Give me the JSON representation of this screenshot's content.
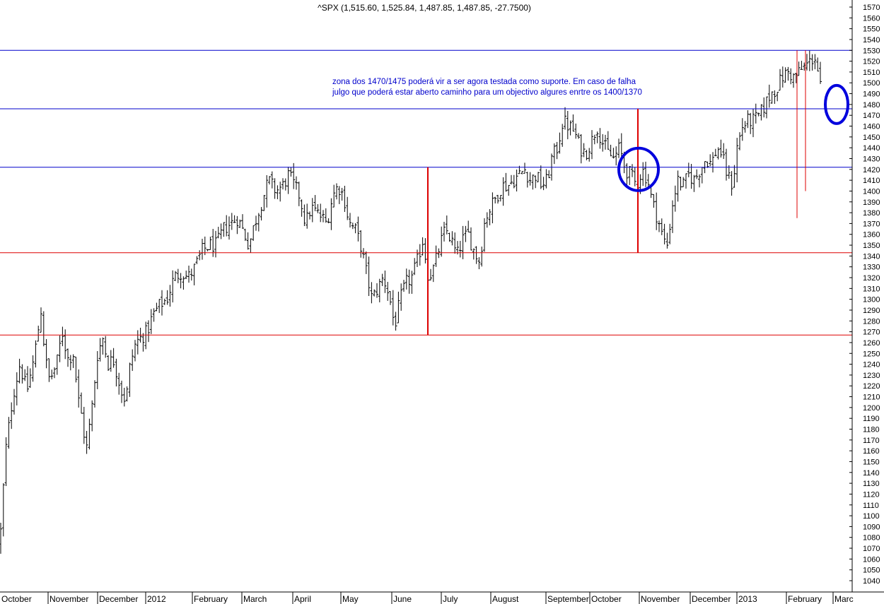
{
  "chart_data": {
    "type": "ohlc",
    "title": "^SPX (1,515.60, 1,525.84, 1,487.85, 1,487.85, -27.7500)",
    "ylim": [
      1032,
      1575
    ],
    "y_tick_min": 1040,
    "y_tick_max": 1570,
    "y_tick_step": 10,
    "grid": false,
    "months": [
      "October",
      "November",
      "December",
      "2012",
      "February",
      "March",
      "April",
      "May",
      "June",
      "July",
      "August",
      "September",
      "October",
      "November",
      "December",
      "2013",
      "February",
      "Marc"
    ],
    "close_path": [
      [
        0,
        1075
      ],
      [
        8,
        1160
      ],
      [
        18,
        1210
      ],
      [
        28,
        1240
      ],
      [
        38,
        1215
      ],
      [
        48,
        1245
      ],
      [
        58,
        1290
      ],
      [
        64,
        1245
      ],
      [
        70,
        1225
      ],
      [
        80,
        1240
      ],
      [
        88,
        1270
      ],
      [
        96,
        1245
      ],
      [
        104,
        1250
      ],
      [
        110,
        1210
      ],
      [
        116,
        1190
      ],
      [
        122,
        1160
      ],
      [
        130,
        1200
      ],
      [
        138,
        1250
      ],
      [
        146,
        1265
      ],
      [
        152,
        1240
      ],
      [
        160,
        1245
      ],
      [
        166,
        1230
      ],
      [
        172,
        1215
      ],
      [
        178,
        1205
      ],
      [
        184,
        1240
      ],
      [
        192,
        1260
      ],
      [
        200,
        1265
      ],
      [
        208,
        1270
      ],
      [
        216,
        1285
      ],
      [
        226,
        1295
      ],
      [
        236,
        1300
      ],
      [
        246,
        1320
      ],
      [
        256,
        1325
      ],
      [
        266,
        1320
      ],
      [
        276,
        1330
      ],
      [
        286,
        1345
      ],
      [
        296,
        1350
      ],
      [
        306,
        1350
      ],
      [
        316,
        1365
      ],
      [
        326,
        1370
      ],
      [
        336,
        1375
      ],
      [
        346,
        1360
      ],
      [
        352,
        1350
      ],
      [
        360,
        1370
      ],
      [
        370,
        1390
      ],
      [
        380,
        1410
      ],
      [
        390,
        1400
      ],
      [
        400,
        1405
      ],
      [
        408,
        1415
      ],
      [
        416,
        1405
      ],
      [
        424,
        1395
      ],
      [
        432,
        1370
      ],
      [
        440,
        1385
      ],
      [
        448,
        1380
      ],
      [
        456,
        1375
      ],
      [
        462,
        1370
      ],
      [
        470,
        1395
      ],
      [
        478,
        1405
      ],
      [
        486,
        1395
      ],
      [
        494,
        1370
      ],
      [
        502,
        1365
      ],
      [
        510,
        1350
      ],
      [
        518,
        1325
      ],
      [
        526,
        1300
      ],
      [
        534,
        1310
      ],
      [
        542,
        1320
      ],
      [
        550,
        1305
      ],
      [
        558,
        1275
      ],
      [
        566,
        1300
      ],
      [
        574,
        1315
      ],
      [
        582,
        1320
      ],
      [
        590,
        1335
      ],
      [
        598,
        1355
      ],
      [
        606,
        1320
      ],
      [
        614,
        1330
      ],
      [
        622,
        1350
      ],
      [
        630,
        1365
      ],
      [
        638,
        1355
      ],
      [
        646,
        1340
      ],
      [
        654,
        1355
      ],
      [
        662,
        1360
      ],
      [
        670,
        1345
      ],
      [
        678,
        1335
      ],
      [
        686,
        1375
      ],
      [
        694,
        1385
      ],
      [
        702,
        1395
      ],
      [
        710,
        1405
      ],
      [
        718,
        1405
      ],
      [
        726,
        1410
      ],
      [
        734,
        1415
      ],
      [
        742,
        1420
      ],
      [
        750,
        1410
      ],
      [
        758,
        1415
      ],
      [
        766,
        1405
      ],
      [
        774,
        1410
      ],
      [
        780,
        1430
      ],
      [
        788,
        1440
      ],
      [
        796,
        1465
      ],
      [
        804,
        1460
      ],
      [
        812,
        1455
      ],
      [
        820,
        1440
      ],
      [
        828,
        1435
      ],
      [
        836,
        1445
      ],
      [
        844,
        1460
      ],
      [
        852,
        1445
      ],
      [
        860,
        1435
      ],
      [
        868,
        1430
      ],
      [
        876,
        1440
      ],
      [
        884,
        1420
      ],
      [
        892,
        1415
      ],
      [
        900,
        1405
      ],
      [
        908,
        1420
      ],
      [
        916,
        1410
      ],
      [
        922,
        1390
      ],
      [
        930,
        1375
      ],
      [
        938,
        1355
      ],
      [
        944,
        1350
      ],
      [
        950,
        1385
      ],
      [
        958,
        1410
      ],
      [
        966,
        1405
      ],
      [
        974,
        1415
      ],
      [
        982,
        1410
      ],
      [
        990,
        1420
      ],
      [
        998,
        1430
      ],
      [
        1006,
        1425
      ],
      [
        1014,
        1440
      ],
      [
        1020,
        1435
      ],
      [
        1028,
        1415
      ],
      [
        1036,
        1405
      ],
      [
        1042,
        1440
      ],
      [
        1050,
        1460
      ],
      [
        1058,
        1465
      ],
      [
        1066,
        1465
      ],
      [
        1074,
        1470
      ],
      [
        1082,
        1480
      ],
      [
        1090,
        1490
      ],
      [
        1098,
        1495
      ],
      [
        1106,
        1505
      ],
      [
        1114,
        1510
      ],
      [
        1122,
        1505
      ],
      [
        1130,
        1510
      ],
      [
        1138,
        1515
      ],
      [
        1146,
        1520
      ],
      [
        1152,
        1525
      ],
      [
        1158,
        1505
      ],
      [
        1162,
        1487
      ]
    ],
    "horizontal_lines": [
      {
        "value": 1530,
        "color": "#0000cc"
      },
      {
        "value": 1476,
        "color": "#0000cc"
      },
      {
        "value": 1422,
        "color": "#0000cc"
      },
      {
        "value": 1343,
        "color": "#dd0000"
      },
      {
        "value": 1267,
        "color": "#dd0000"
      }
    ],
    "vertical_markers": [
      {
        "x": 605,
        "from": 1422,
        "to": 1267,
        "color": "#dd0000",
        "width": 2
      },
      {
        "x": 902,
        "from": 1476,
        "to": 1343,
        "color": "#dd0000",
        "width": 2
      },
      {
        "x": 1127,
        "from": 1530,
        "to": 1375,
        "color": "#dd0000",
        "width": 1
      },
      {
        "x": 1139,
        "from": 1530,
        "to": 1400,
        "color": "#dd0000",
        "width": 1
      }
    ],
    "circles": [
      {
        "x": 903,
        "y": 1420,
        "color": "#0000dd"
      },
      {
        "x": 1183,
        "y": 1480,
        "color": "#0000dd"
      }
    ],
    "annotation": [
      "zona dos 1470/1475 poderá vir a ser agora testada como suporte. Em caso de falha",
      "julgo que poderá estar aberto caminho para um objectivo algures enrtre os 1400/1370"
    ],
    "colors": {
      "price": "#000000",
      "resistance": "#0000cc",
      "support": "#dd0000"
    }
  }
}
